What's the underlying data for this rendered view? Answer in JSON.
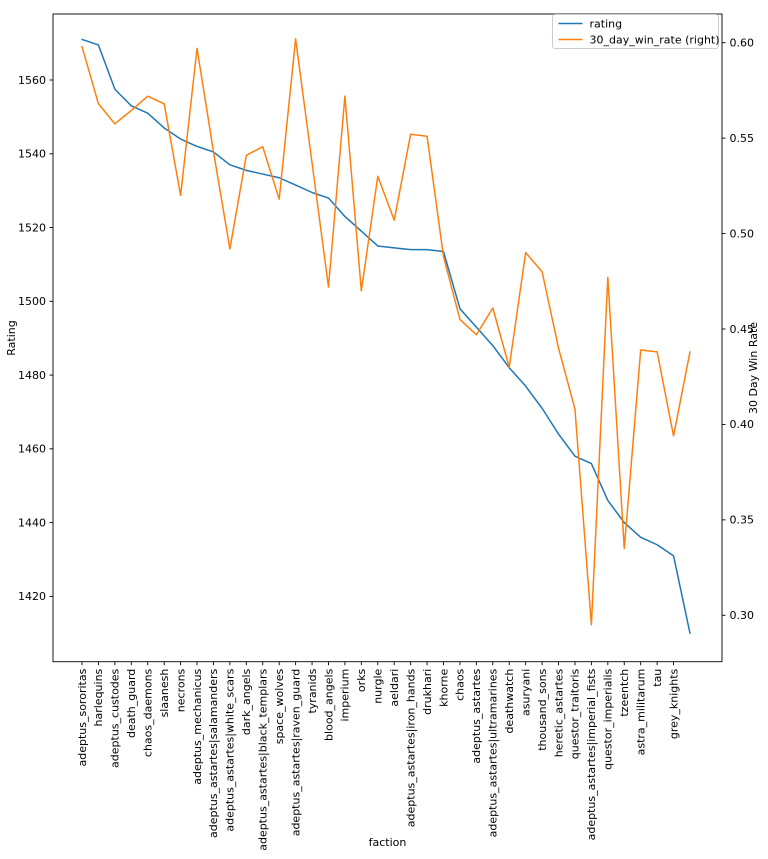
{
  "chart_data": {
    "type": "line",
    "title": "",
    "xlabel": "faction",
    "ylabel_left": "Rating",
    "ylabel_right": "30 Day Win Rate",
    "grid": false,
    "legend_position": "upper right",
    "legend": [
      "rating",
      "30_day_win_rate (right)"
    ],
    "categories": [
      "adeptus_sororitas",
      "harlequins",
      "adeptus_custodes",
      "death_guard",
      "chaos_daemons",
      "slaanesh",
      "necrons",
      "adeptus_mechanicus",
      "adeptus_astartes|salamanders",
      "adeptus_astartes|white_scars",
      "dark_angels",
      "adeptus_astartes|black_templars",
      "space_wolves",
      "adeptus_astartes|raven_guard",
      "tyranids",
      "blood_angels",
      "imperium",
      "orks",
      "nurgle",
      "aeldari",
      "adeptus_astartes|iron_hands",
      "drukhari",
      "khorne",
      "chaos",
      "adeptus_astartes",
      "adeptus_astartes|ultramarines",
      "deathwatch",
      "asuryani",
      "thousand_sons",
      "heretic_astartes",
      "questor_traitoris",
      "adeptus_astartes|imperial_fists",
      "questor_imperialis",
      "tzeentch",
      "astra_militarum",
      "tau",
      "grey_knights",
      ""
    ],
    "series": [
      {
        "name": "rating",
        "axis": "left",
        "color": "#1f77b4",
        "values": [
          1571,
          1569.5,
          1557.5,
          1553,
          1551,
          1547,
          1544,
          1542,
          1540.5,
          1537,
          1535.5,
          1534.5,
          1533.5,
          1531.5,
          1529.5,
          1528,
          1523,
          1519,
          1515,
          1514.5,
          1514,
          1514,
          1513.5,
          1498,
          1493,
          1488,
          1482,
          1477,
          1471,
          1464,
          1458,
          1456,
          1446,
          1440,
          1436,
          1434,
          1431,
          1410
        ]
      },
      {
        "name": "30_day_win_rate (right)",
        "axis": "right",
        "color": "#ff7f0e",
        "values": [
          0.598,
          0.568,
          0.5575,
          0.5645,
          0.572,
          0.568,
          0.52,
          0.597,
          0.543,
          0.492,
          0.541,
          0.5455,
          0.518,
          0.602,
          0.537,
          0.472,
          0.572,
          0.47,
          0.53,
          0.507,
          0.552,
          0.551,
          0.488,
          0.455,
          0.447,
          0.461,
          0.43,
          0.49,
          0.48,
          0.44,
          0.408,
          0.295,
          0.477,
          0.335,
          0.439,
          0.438,
          0.394,
          0.438
        ]
      }
    ],
    "left_axis": {
      "label": "Rating",
      "ticks": [
        1420,
        1440,
        1460,
        1480,
        1500,
        1520,
        1540,
        1560
      ],
      "range": [
        1402.3,
        1577.9
      ]
    },
    "right_axis": {
      "label": "30 Day Win Rate",
      "ticks": [
        0.3,
        0.35,
        0.4,
        0.45,
        0.5,
        0.55,
        0.6
      ],
      "range": [
        0.2757,
        0.615
      ]
    },
    "colors": {
      "axis": "#000000",
      "legend_border": "#cccccc",
      "background": "#ffffff"
    }
  }
}
